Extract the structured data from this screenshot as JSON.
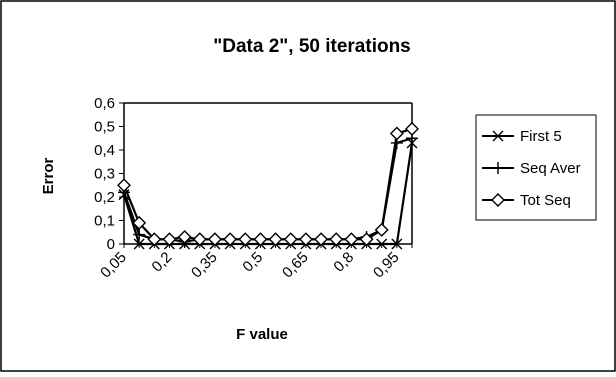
{
  "chart_data": {
    "type": "line",
    "title": "\"Data 2\", 50 iterations",
    "xlabel": "F value",
    "ylabel": "Error",
    "categories": [
      "0,05",
      "0,1",
      "0,15",
      "0,2",
      "0,25",
      "0,3",
      "0,35",
      "0,4",
      "0,45",
      "0,5",
      "0,55",
      "0,6",
      "0,65",
      "0,7",
      "0,75",
      "0,8",
      "0,85",
      "0,9",
      "0,95",
      "1"
    ],
    "x_tick_labels": [
      "0,05",
      "0,2",
      "0,35",
      "0,5",
      "0,65",
      "0,8",
      "0,95"
    ],
    "x_tick_indices": [
      0,
      3,
      6,
      9,
      12,
      15,
      18
    ],
    "y_tick_labels": [
      "0",
      "0,1",
      "0,2",
      "0,3",
      "0,4",
      "0,5",
      "0,6"
    ],
    "ylim": [
      0,
      0.6
    ],
    "grid": false,
    "legend_position": "right",
    "series": [
      {
        "name": "First 5",
        "marker": "x",
        "values": [
          0.21,
          0.0,
          0.0,
          0.0,
          0.0,
          0.0,
          0.0,
          0.0,
          0.0,
          0.0,
          0.0,
          0.0,
          0.0,
          0.0,
          0.0,
          0.0,
          0.0,
          0.0,
          0.0,
          0.43
        ]
      },
      {
        "name": "Seq Aver",
        "marker": "plus",
        "values": [
          0.22,
          0.04,
          0.02,
          0.02,
          0.01,
          0.02,
          0.02,
          0.02,
          0.02,
          0.02,
          0.02,
          0.02,
          0.02,
          0.02,
          0.02,
          0.02,
          0.03,
          0.06,
          0.43,
          0.45
        ]
      },
      {
        "name": "Tot Seq",
        "marker": "diamond",
        "values": [
          0.25,
          0.09,
          0.02,
          0.02,
          0.03,
          0.02,
          0.02,
          0.02,
          0.02,
          0.02,
          0.02,
          0.02,
          0.02,
          0.02,
          0.02,
          0.02,
          0.02,
          0.06,
          0.47,
          0.49
        ]
      }
    ]
  }
}
